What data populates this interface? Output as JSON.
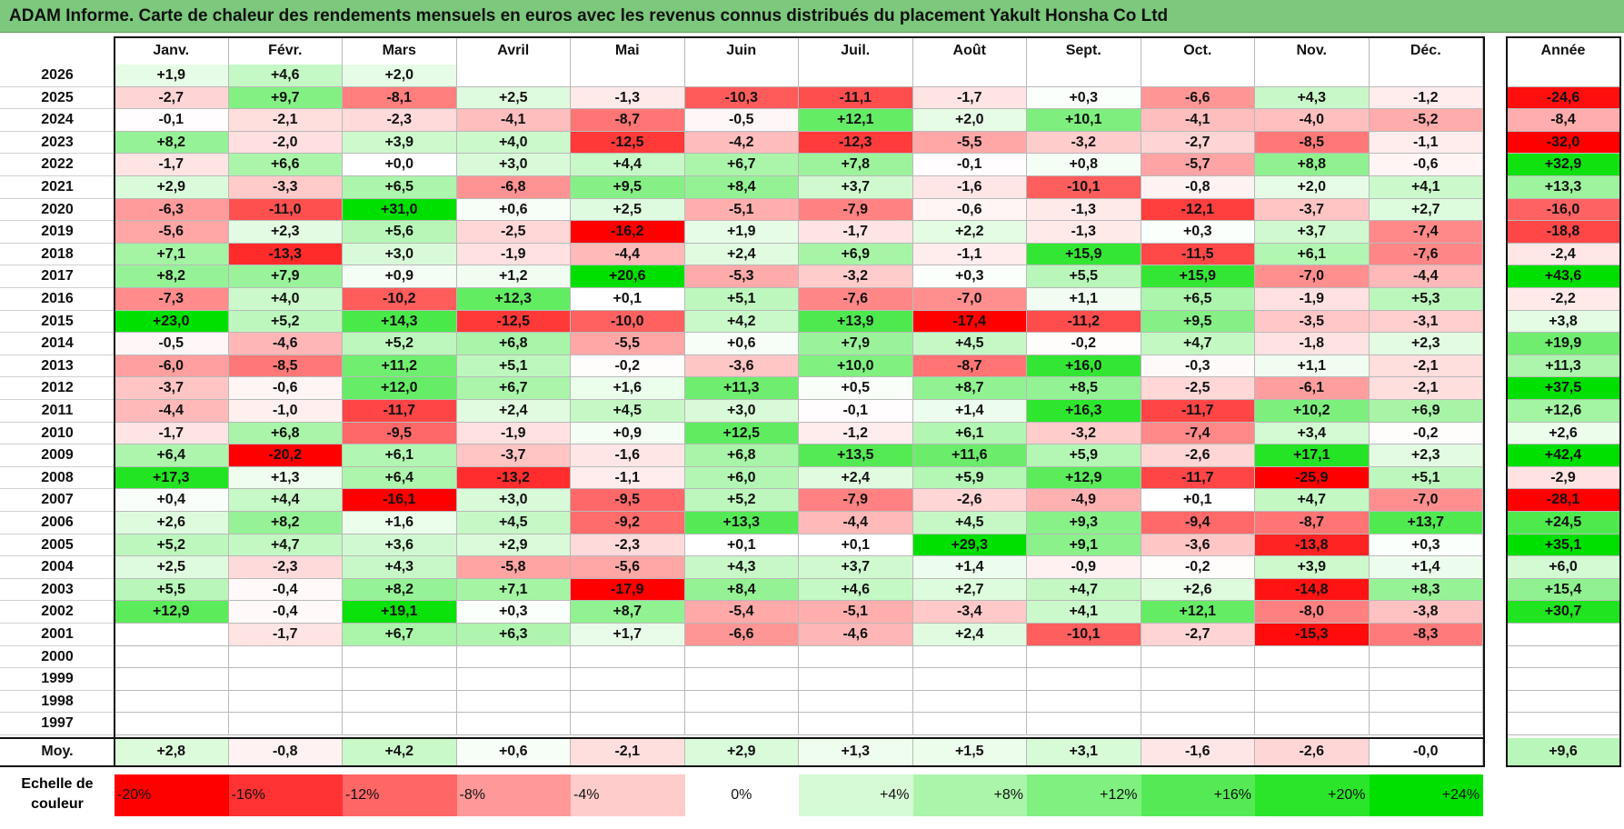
{
  "title": "ADAM Informe. Carte de chaleur des rendements mensuels en euros avec les revenus connus distribués du placement Yakult Honsha Co Ltd",
  "months": [
    "Janv.",
    "Févr.",
    "Mars",
    "Avril",
    "Mai",
    "Juin",
    "Juil.",
    "Août",
    "Sept.",
    "Oct.",
    "Nov.",
    "Déc."
  ],
  "year_header": "Année",
  "avg_label": "Moy.",
  "scale_label_line1": "Echelle de",
  "scale_label_line2": "couleur",
  "chart_data": {
    "type": "heatmap",
    "title": "ADAM Informe. Carte de chaleur des rendements mensuels en euros avec les revenus connus distribués du placement Yakult Honsha Co Ltd",
    "columns": [
      "Janv.",
      "Févr.",
      "Mars",
      "Avril",
      "Mai",
      "Juin",
      "Juil.",
      "Août",
      "Sept.",
      "Oct.",
      "Nov.",
      "Déc.",
      "Année"
    ],
    "rows": [
      {
        "year": "2026",
        "values": [
          "+1,9",
          "+4,6",
          "+2,0",
          "",
          "",
          "",
          "",
          "",
          "",
          "",
          "",
          ""
        ],
        "annual": ""
      },
      {
        "year": "2025",
        "values": [
          "-2,7",
          "+9,7",
          "-8,1",
          "+2,5",
          "-1,3",
          "-10,3",
          "-11,1",
          "-1,7",
          "+0,3",
          "-6,6",
          "+4,3",
          "-1,2"
        ],
        "annual": "-24,6"
      },
      {
        "year": "2024",
        "values": [
          "-0,1",
          "-2,1",
          "-2,3",
          "-4,1",
          "-8,7",
          "-0,5",
          "+12,1",
          "+2,0",
          "+10,1",
          "-4,1",
          "-4,0",
          "-5,2"
        ],
        "annual": "-8,4"
      },
      {
        "year": "2023",
        "values": [
          "+8,2",
          "-2,0",
          "+3,9",
          "+4,0",
          "-12,5",
          "-4,2",
          "-12,3",
          "-5,5",
          "-3,2",
          "-2,7",
          "-8,5",
          "-1,1"
        ],
        "annual": "-32,0"
      },
      {
        "year": "2022",
        "values": [
          "-1,7",
          "+6,6",
          "+0,0",
          "+3,0",
          "+4,4",
          "+6,7",
          "+7,8",
          "-0,1",
          "+0,8",
          "-5,7",
          "+8,8",
          "-0,6"
        ],
        "annual": "+32,9"
      },
      {
        "year": "2021",
        "values": [
          "+2,9",
          "-3,3",
          "+6,5",
          "-6,8",
          "+9,5",
          "+8,4",
          "+3,7",
          "-1,6",
          "-10,1",
          "-0,8",
          "+2,0",
          "+4,1"
        ],
        "annual": "+13,3"
      },
      {
        "year": "2020",
        "values": [
          "-6,3",
          "-11,0",
          "+31,0",
          "+0,6",
          "+2,5",
          "-5,1",
          "-7,9",
          "-0,6",
          "-1,3",
          "-12,1",
          "-3,7",
          "+2,7"
        ],
        "annual": "-16,0"
      },
      {
        "year": "2019",
        "values": [
          "-5,6",
          "+2,3",
          "+5,6",
          "-2,5",
          "-16,2",
          "+1,9",
          "-1,7",
          "+2,2",
          "-1,3",
          "+0,3",
          "+3,7",
          "-7,4"
        ],
        "annual": "-18,8"
      },
      {
        "year": "2018",
        "values": [
          "+7,1",
          "-13,3",
          "+3,0",
          "-1,9",
          "-4,4",
          "+2,4",
          "+6,9",
          "-1,1",
          "+15,9",
          "-11,5",
          "+6,1",
          "-7,6"
        ],
        "annual": "-2,4"
      },
      {
        "year": "2017",
        "values": [
          "+8,2",
          "+7,9",
          "+0,9",
          "+1,2",
          "+20,6",
          "-5,3",
          "-3,2",
          "+0,3",
          "+5,5",
          "+15,9",
          "-7,0",
          "-4,4"
        ],
        "annual": "+43,6"
      },
      {
        "year": "2016",
        "values": [
          "-7,3",
          "+4,0",
          "-10,2",
          "+12,3",
          "+0,1",
          "+5,1",
          "-7,6",
          "-7,0",
          "+1,1",
          "+6,5",
          "-1,9",
          "+5,3"
        ],
        "annual": "-2,2"
      },
      {
        "year": "2015",
        "values": [
          "+23,0",
          "+5,2",
          "+14,3",
          "-12,5",
          "-10,0",
          "+4,2",
          "+13,9",
          "-17,4",
          "-11,2",
          "+9,5",
          "-3,5",
          "-3,1"
        ],
        "annual": "+3,8"
      },
      {
        "year": "2014",
        "values": [
          "-0,5",
          "-4,6",
          "+5,2",
          "+6,8",
          "-5,5",
          "+0,6",
          "+7,9",
          "+4,5",
          "-0,2",
          "+4,7",
          "-1,8",
          "+2,3"
        ],
        "annual": "+19,9"
      },
      {
        "year": "2013",
        "values": [
          "-6,0",
          "-8,5",
          "+11,2",
          "+5,1",
          "-0,2",
          "-3,6",
          "+10,0",
          "-8,7",
          "+16,0",
          "-0,3",
          "+1,1",
          "-2,1"
        ],
        "annual": "+11,3"
      },
      {
        "year": "2012",
        "values": [
          "-3,7",
          "-0,6",
          "+12,0",
          "+6,7",
          "+1,6",
          "+11,3",
          "+0,5",
          "+8,7",
          "+8,5",
          "-2,5",
          "-6,1",
          "-2,1"
        ],
        "annual": "+37,5"
      },
      {
        "year": "2011",
        "values": [
          "-4,4",
          "-1,0",
          "-11,7",
          "+2,4",
          "+4,5",
          "+3,0",
          "-0,1",
          "+1,4",
          "+16,3",
          "-11,7",
          "+10,2",
          "+6,9"
        ],
        "annual": "+12,6"
      },
      {
        "year": "2010",
        "values": [
          "-1,7",
          "+6,8",
          "-9,5",
          "-1,9",
          "+0,9",
          "+12,5",
          "-1,2",
          "+6,1",
          "-3,2",
          "-7,4",
          "+3,4",
          "-0,2"
        ],
        "annual": "+2,6"
      },
      {
        "year": "2009",
        "values": [
          "+6,4",
          "-20,2",
          "+6,1",
          "-3,7",
          "-1,6",
          "+6,8",
          "+13,5",
          "+11,6",
          "+5,9",
          "-2,6",
          "+17,1",
          "+2,3"
        ],
        "annual": "+42,4"
      },
      {
        "year": "2008",
        "values": [
          "+17,3",
          "+1,3",
          "+6,4",
          "-13,2",
          "-1,1",
          "+6,0",
          "+2,4",
          "+5,9",
          "+12,9",
          "-11,7",
          "-25,9",
          "+5,1"
        ],
        "annual": "-2,9"
      },
      {
        "year": "2007",
        "values": [
          "+0,4",
          "+4,4",
          "-16,1",
          "+3,0",
          "-9,5",
          "+5,2",
          "-7,9",
          "-2,6",
          "-4,9",
          "+0,1",
          "+4,7",
          "-7,0"
        ],
        "annual": "-28,1"
      },
      {
        "year": "2006",
        "values": [
          "+2,6",
          "+8,2",
          "+1,6",
          "+4,5",
          "-9,2",
          "+13,3",
          "-4,4",
          "+4,5",
          "+9,3",
          "-9,4",
          "-8,7",
          "+13,7"
        ],
        "annual": "+24,5"
      },
      {
        "year": "2005",
        "values": [
          "+5,2",
          "+4,7",
          "+3,6",
          "+2,9",
          "-2,3",
          "+0,1",
          "+0,1",
          "+29,3",
          "+9,1",
          "-3,6",
          "-13,8",
          "+0,3"
        ],
        "annual": "+35,1"
      },
      {
        "year": "2004",
        "values": [
          "+2,5",
          "-2,3",
          "+4,3",
          "-5,8",
          "-5,6",
          "+4,3",
          "+3,7",
          "+1,4",
          "-0,9",
          "-0,2",
          "+3,9",
          "+1,4"
        ],
        "annual": "+6,0"
      },
      {
        "year": "2003",
        "values": [
          "+5,5",
          "-0,4",
          "+8,2",
          "+7,1",
          "-17,9",
          "+8,4",
          "+4,6",
          "+2,7",
          "+4,7",
          "+2,6",
          "-14,8",
          "+8,3"
        ],
        "annual": "+15,4"
      },
      {
        "year": "2002",
        "values": [
          "+12,9",
          "-0,4",
          "+19,1",
          "+0,3",
          "+8,7",
          "-5,4",
          "-5,1",
          "-3,4",
          "+4,1",
          "+12,1",
          "-8,0",
          "-3,8"
        ],
        "annual": "+30,7"
      },
      {
        "year": "2001",
        "values": [
          "",
          "-1,7",
          "+6,7",
          "+6,3",
          "+1,7",
          "-6,6",
          "-4,6",
          "+2,4",
          "-10,1",
          "-2,7",
          "-15,3",
          "-8,3"
        ],
        "annual": ""
      },
      {
        "year": "2000",
        "values": [
          "",
          "",
          "",
          "",
          "",
          "",
          "",
          "",
          "",
          "",
          "",
          ""
        ],
        "annual": ""
      },
      {
        "year": "1999",
        "values": [
          "",
          "",
          "",
          "",
          "",
          "",
          "",
          "",
          "",
          "",
          "",
          ""
        ],
        "annual": ""
      },
      {
        "year": "1998",
        "values": [
          "",
          "",
          "",
          "",
          "",
          "",
          "",
          "",
          "",
          "",
          "",
          ""
        ],
        "annual": ""
      },
      {
        "year": "1997",
        "values": [
          "",
          "",
          "",
          "",
          "",
          "",
          "",
          "",
          "",
          "",
          "",
          ""
        ],
        "annual": ""
      }
    ],
    "average": {
      "label": "Moy.",
      "values": [
        "+2,8",
        "-0,8",
        "+4,2",
        "+0,6",
        "-2,1",
        "+2,9",
        "+1,3",
        "+1,5",
        "+3,1",
        "-1,6",
        "-2,6",
        "-0,0"
      ],
      "annual": "+9,6"
    },
    "scale": [
      "-20%",
      "-16%",
      "-12%",
      "-8%",
      "-4%",
      "0%",
      "+4%",
      "+8%",
      "+12%",
      "+16%",
      "+20%",
      "+24%"
    ],
    "colors": {
      "negative_max": "#FF0000",
      "neutral": "#FFFFFF",
      "positive_max": "#00E000",
      "title_bar": "#7CC87C"
    }
  }
}
